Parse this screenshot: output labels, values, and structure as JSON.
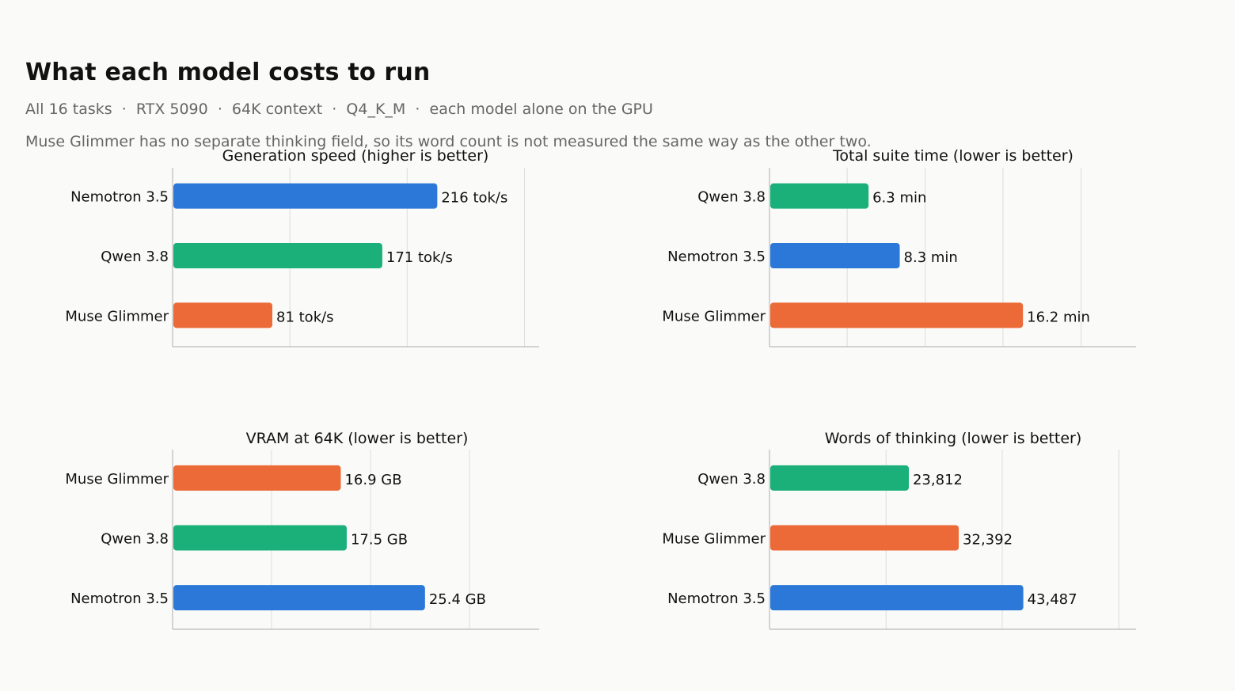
{
  "header": {
    "title": "What each model costs to run",
    "subtitle": "All 16 tasks  ·  RTX 5090  ·  64K context  ·  Q4_K_M  ·  each model alone on the GPU",
    "note": "Muse Glimmer has no separate thinking field, so its word count is not measured the same way as the other two."
  },
  "colors": {
    "Nemotron 3.5": "#2b78d8",
    "Qwen 3.8": "#1bb07a",
    "Muse Glimmer": "#ec6a37",
    "grid": "#dddddd",
    "axis": "#bbbbbb"
  },
  "chart_data": [
    {
      "type": "bar",
      "orientation": "horizontal",
      "title": "Generation speed  (higher is better)",
      "categories": [
        "Nemotron 3.5",
        "Qwen 3.8",
        "Muse Glimmer"
      ],
      "values": [
        216,
        171,
        81
      ],
      "value_labels": [
        "216 tok/s",
        "171 tok/s",
        "81 tok/s"
      ],
      "xlim": [
        0,
        300
      ],
      "grid": true
    },
    {
      "type": "bar",
      "orientation": "horizontal",
      "title": "Total suite time  (lower is better)",
      "categories": [
        "Qwen 3.8",
        "Nemotron 3.5",
        "Muse Glimmer"
      ],
      "values": [
        6.3,
        8.3,
        16.2
      ],
      "value_labels": [
        "6.3 min",
        "8.3 min",
        "16.2 min"
      ],
      "xlim": [
        0,
        23.5
      ],
      "grid": true
    },
    {
      "type": "bar",
      "orientation": "horizontal",
      "title": "VRAM at 64K  (lower is better)",
      "categories": [
        "Muse Glimmer",
        "Qwen 3.8",
        "Nemotron 3.5"
      ],
      "values": [
        16.9,
        17.5,
        25.4
      ],
      "value_labels": [
        "16.9 GB",
        "17.5 GB",
        "25.4 GB"
      ],
      "xlim": [
        0,
        37
      ],
      "grid": true
    },
    {
      "type": "bar",
      "orientation": "horizontal",
      "title": "Words of thinking  (lower is better)",
      "categories": [
        "Qwen 3.8",
        "Muse Glimmer",
        "Nemotron 3.5"
      ],
      "values": [
        23812,
        32392,
        43487
      ],
      "value_labels": [
        "23,812",
        "32,392",
        "43,487"
      ],
      "xlim": [
        0,
        63000
      ],
      "grid": true
    }
  ]
}
